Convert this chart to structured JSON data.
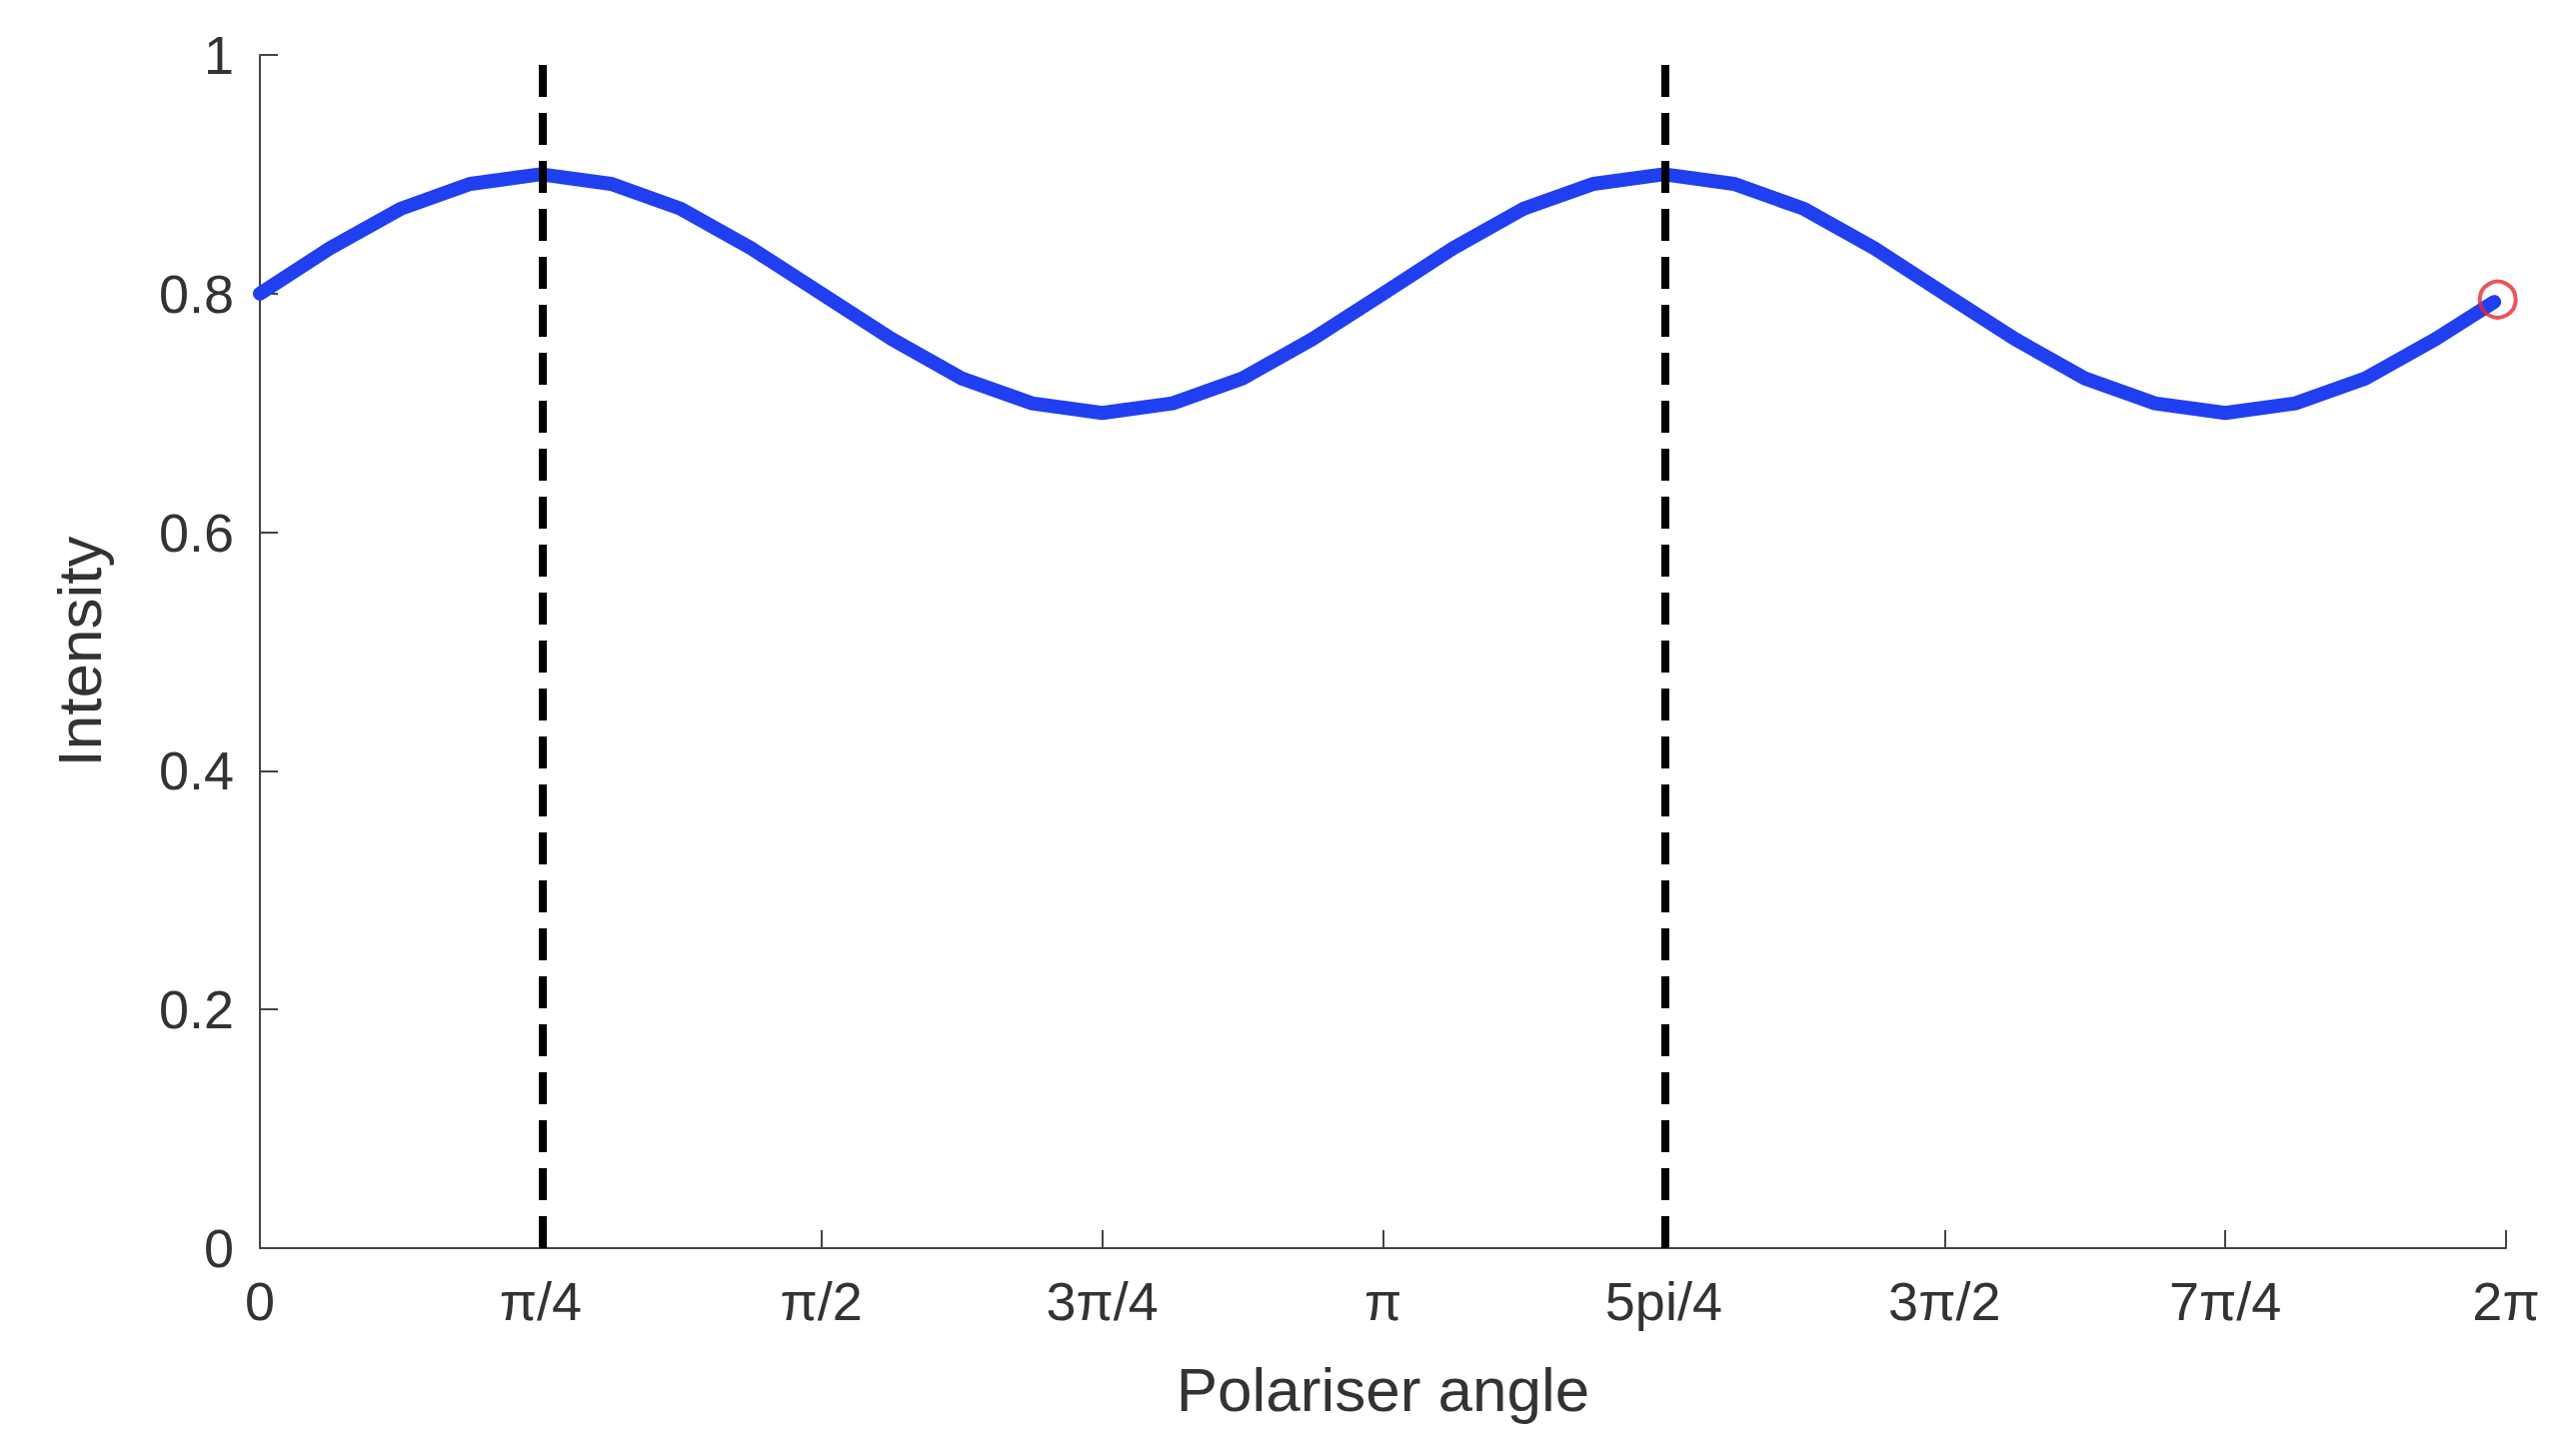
{
  "chart_data": {
    "type": "line",
    "xlabel": "Polariser angle",
    "ylabel": "Intensity",
    "xlim": [
      0,
      6.2832
    ],
    "ylim": [
      0,
      1
    ],
    "xticks": [
      0,
      {
        "value": 0.7854,
        "label": "π/4"
      },
      {
        "value": 1.5708,
        "label": "π/2"
      },
      {
        "value": 2.3562,
        "label": "3π/4"
      },
      {
        "value": 3.1416,
        "label": "π"
      },
      {
        "value": 3.927,
        "label": "5pi/4"
      },
      {
        "value": 4.7124,
        "label": "3π/2"
      },
      {
        "value": 5.4978,
        "label": "7π/4"
      },
      {
        "value": 6.2832,
        "label": "2π"
      }
    ],
    "yticks": [
      0,
      0.2,
      0.4,
      0.6,
      0.8,
      1
    ],
    "grid": false,
    "series": [
      {
        "color": "#1f3ff0",
        "marker": "none",
        "line_style": "solid",
        "x": [
          0,
          0.196,
          0.393,
          0.589,
          0.785,
          0.982,
          1.178,
          1.374,
          1.571,
          1.767,
          1.963,
          2.16,
          2.356,
          2.553,
          2.749,
          2.945,
          3.142,
          3.338,
          3.534,
          3.731,
          3.927,
          4.123,
          4.32,
          4.516,
          4.712,
          4.909,
          5.105,
          5.301,
          5.498,
          5.694,
          5.89,
          6.087,
          6.25
        ],
        "values": [
          0.8,
          0.838,
          0.871,
          0.892,
          0.9,
          0.892,
          0.871,
          0.838,
          0.8,
          0.762,
          0.729,
          0.708,
          0.7,
          0.708,
          0.729,
          0.762,
          0.8,
          0.838,
          0.871,
          0.892,
          0.9,
          0.892,
          0.871,
          0.838,
          0.8,
          0.762,
          0.729,
          0.708,
          0.7,
          0.708,
          0.729,
          0.762,
          0.793
        ]
      },
      {
        "type": "scatter",
        "color": "#e8282e",
        "marker": "circle",
        "x": [
          6.26
        ],
        "values": [
          0.795
        ]
      }
    ],
    "ref_lines": [
      {
        "axis": "x",
        "value": 0.7854,
        "color": "#000000",
        "line_style": "dashed"
      },
      {
        "axis": "x",
        "value": 3.927,
        "color": "#000000",
        "line_style": "dashed"
      }
    ]
  }
}
